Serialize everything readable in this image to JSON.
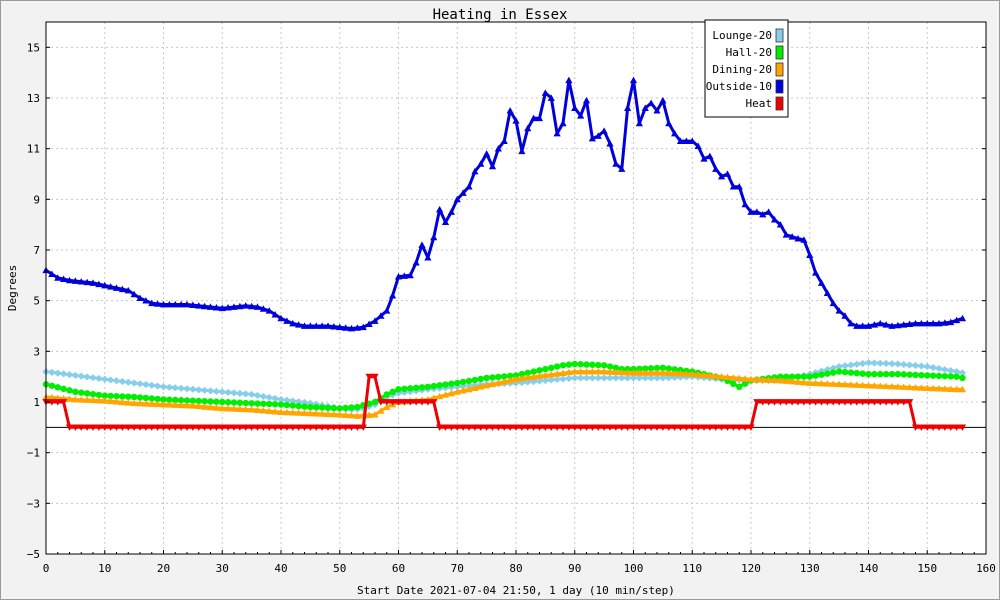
{
  "chart_data": {
    "type": "line",
    "title": "Heating in Essex",
    "xlabel": "Start Date 2021-07-04 21:50, 1 day (10 min/step)",
    "ylabel": "Degrees",
    "xlim": [
      0,
      160
    ],
    "ylim": [
      -5,
      16
    ],
    "x_ticks": [
      0,
      10,
      20,
      30,
      40,
      50,
      60,
      70,
      80,
      90,
      100,
      110,
      120,
      130,
      140,
      150,
      160
    ],
    "y_ticks": [
      -5,
      -3,
      -1,
      1,
      3,
      5,
      7,
      9,
      11,
      13,
      15
    ],
    "y_tick_labels": [
      "−5",
      "−3",
      "−1",
      "1",
      "3",
      "5",
      "7",
      "9",
      "11",
      "13",
      "15"
    ],
    "grid": true,
    "legend_position": "top-right",
    "series": [
      {
        "name": "Lounge-20",
        "color": "#87ceeb",
        "marker": "diamond",
        "points": [
          [
            0,
            2.2
          ],
          [
            5,
            2.05
          ],
          [
            10,
            1.9
          ],
          [
            15,
            1.75
          ],
          [
            20,
            1.6
          ],
          [
            25,
            1.5
          ],
          [
            30,
            1.4
          ],
          [
            35,
            1.3
          ],
          [
            40,
            1.1
          ],
          [
            45,
            0.95
          ],
          [
            50,
            0.75
          ],
          [
            52,
            0.7
          ],
          [
            54,
            0.75
          ],
          [
            56,
            0.9
          ],
          [
            58,
            1.2
          ],
          [
            60,
            1.35
          ],
          [
            65,
            1.5
          ],
          [
            70,
            1.6
          ],
          [
            75,
            1.7
          ],
          [
            80,
            1.75
          ],
          [
            85,
            1.85
          ],
          [
            90,
            1.95
          ],
          [
            95,
            1.95
          ],
          [
            100,
            1.95
          ],
          [
            105,
            1.95
          ],
          [
            110,
            2.0
          ],
          [
            115,
            1.9
          ],
          [
            120,
            1.85
          ],
          [
            125,
            1.85
          ],
          [
            130,
            2.1
          ],
          [
            135,
            2.4
          ],
          [
            140,
            2.55
          ],
          [
            145,
            2.5
          ],
          [
            150,
            2.4
          ],
          [
            155,
            2.2
          ],
          [
            156,
            2.15
          ]
        ]
      },
      {
        "name": "Hall-20",
        "color": "#00ee00",
        "marker": "circle",
        "points": [
          [
            0,
            1.7
          ],
          [
            5,
            1.4
          ],
          [
            10,
            1.25
          ],
          [
            15,
            1.2
          ],
          [
            20,
            1.1
          ],
          [
            25,
            1.05
          ],
          [
            30,
            1.0
          ],
          [
            35,
            0.95
          ],
          [
            40,
            0.9
          ],
          [
            45,
            0.8
          ],
          [
            50,
            0.75
          ],
          [
            53,
            0.8
          ],
          [
            56,
            1.0
          ],
          [
            58,
            1.3
          ],
          [
            60,
            1.5
          ],
          [
            65,
            1.6
          ],
          [
            70,
            1.75
          ],
          [
            75,
            1.95
          ],
          [
            80,
            2.05
          ],
          [
            85,
            2.3
          ],
          [
            88,
            2.45
          ],
          [
            90,
            2.5
          ],
          [
            95,
            2.45
          ],
          [
            98,
            2.3
          ],
          [
            100,
            2.3
          ],
          [
            105,
            2.35
          ],
          [
            110,
            2.2
          ],
          [
            115,
            1.95
          ],
          [
            118,
            1.6
          ],
          [
            120,
            1.85
          ],
          [
            125,
            2.0
          ],
          [
            130,
            2.0
          ],
          [
            135,
            2.2
          ],
          [
            140,
            2.1
          ],
          [
            145,
            2.1
          ],
          [
            150,
            2.05
          ],
          [
            155,
            2.0
          ],
          [
            156,
            1.95
          ]
        ]
      },
      {
        "name": "Dining-20",
        "color": "#ffa500",
        "marker": "triangle",
        "points": [
          [
            0,
            1.2
          ],
          [
            5,
            1.1
          ],
          [
            10,
            1.05
          ],
          [
            15,
            0.95
          ],
          [
            20,
            0.9
          ],
          [
            25,
            0.85
          ],
          [
            30,
            0.75
          ],
          [
            35,
            0.7
          ],
          [
            40,
            0.6
          ],
          [
            45,
            0.55
          ],
          [
            50,
            0.5
          ],
          [
            53,
            0.45
          ],
          [
            56,
            0.5
          ],
          [
            58,
            0.8
          ],
          [
            60,
            1.0
          ],
          [
            65,
            1.1
          ],
          [
            70,
            1.4
          ],
          [
            75,
            1.65
          ],
          [
            80,
            1.9
          ],
          [
            85,
            2.05
          ],
          [
            90,
            2.2
          ],
          [
            95,
            2.2
          ],
          [
            100,
            2.15
          ],
          [
            105,
            2.15
          ],
          [
            110,
            2.1
          ],
          [
            115,
            2.0
          ],
          [
            120,
            1.9
          ],
          [
            125,
            1.85
          ],
          [
            130,
            1.75
          ],
          [
            135,
            1.7
          ],
          [
            140,
            1.65
          ],
          [
            145,
            1.6
          ],
          [
            150,
            1.55
          ],
          [
            155,
            1.5
          ],
          [
            156,
            1.5
          ]
        ]
      },
      {
        "name": "Outside-10",
        "color": "#0000dd",
        "marker": "triangle",
        "points": [
          [
            0,
            6.2
          ],
          [
            2,
            5.9
          ],
          [
            4,
            5.8
          ],
          [
            6,
            5.75
          ],
          [
            8,
            5.7
          ],
          [
            10,
            5.6
          ],
          [
            12,
            5.5
          ],
          [
            14,
            5.4
          ],
          [
            16,
            5.1
          ],
          [
            18,
            4.9
          ],
          [
            20,
            4.85
          ],
          [
            24,
            4.85
          ],
          [
            26,
            4.8
          ],
          [
            28,
            4.75
          ],
          [
            30,
            4.7
          ],
          [
            32,
            4.75
          ],
          [
            34,
            4.8
          ],
          [
            36,
            4.75
          ],
          [
            38,
            4.6
          ],
          [
            40,
            4.3
          ],
          [
            42,
            4.1
          ],
          [
            44,
            4.0
          ],
          [
            48,
            4.0
          ],
          [
            50,
            3.95
          ],
          [
            52,
            3.9
          ],
          [
            54,
            3.95
          ],
          [
            56,
            4.2
          ],
          [
            58,
            4.6
          ],
          [
            59,
            5.2
          ],
          [
            60,
            5.95
          ],
          [
            62,
            6.0
          ],
          [
            63,
            6.5
          ],
          [
            64,
            7.2
          ],
          [
            65,
            6.7
          ],
          [
            66,
            7.5
          ],
          [
            67,
            8.6
          ],
          [
            68,
            8.1
          ],
          [
            69,
            8.5
          ],
          [
            70,
            9.0
          ],
          [
            72,
            9.5
          ],
          [
            73,
            10.1
          ],
          [
            74,
            10.4
          ],
          [
            75,
            10.8
          ],
          [
            76,
            10.3
          ],
          [
            77,
            11.0
          ],
          [
            78,
            11.3
          ],
          [
            79,
            12.5
          ],
          [
            80,
            12.1
          ],
          [
            81,
            10.9
          ],
          [
            82,
            11.8
          ],
          [
            83,
            12.2
          ],
          [
            84,
            12.2
          ],
          [
            85,
            13.2
          ],
          [
            86,
            13.0
          ],
          [
            87,
            11.6
          ],
          [
            88,
            12.0
          ],
          [
            89,
            13.7
          ],
          [
            90,
            12.6
          ],
          [
            91,
            12.3
          ],
          [
            92,
            12.9
          ],
          [
            93,
            11.4
          ],
          [
            94,
            11.5
          ],
          [
            95,
            11.7
          ],
          [
            96,
            11.2
          ],
          [
            97,
            10.4
          ],
          [
            98,
            10.2
          ],
          [
            99,
            12.6
          ],
          [
            100,
            13.7
          ],
          [
            101,
            12.0
          ],
          [
            102,
            12.6
          ],
          [
            103,
            12.8
          ],
          [
            104,
            12.5
          ],
          [
            105,
            12.9
          ],
          [
            106,
            12.0
          ],
          [
            107,
            11.6
          ],
          [
            108,
            11.3
          ],
          [
            110,
            11.3
          ],
          [
            111,
            11.1
          ],
          [
            112,
            10.6
          ],
          [
            113,
            10.7
          ],
          [
            114,
            10.2
          ],
          [
            115,
            9.9
          ],
          [
            116,
            10.0
          ],
          [
            117,
            9.5
          ],
          [
            118,
            9.5
          ],
          [
            119,
            8.8
          ],
          [
            120,
            8.5
          ],
          [
            121,
            8.5
          ],
          [
            122,
            8.4
          ],
          [
            123,
            8.5
          ],
          [
            124,
            8.2
          ],
          [
            125,
            8.0
          ],
          [
            126,
            7.6
          ],
          [
            128,
            7.45
          ],
          [
            129,
            7.4
          ],
          [
            130,
            6.8
          ],
          [
            131,
            6.1
          ],
          [
            132,
            5.7
          ],
          [
            133,
            5.3
          ],
          [
            134,
            4.9
          ],
          [
            135,
            4.6
          ],
          [
            136,
            4.4
          ],
          [
            137,
            4.1
          ],
          [
            138,
            4.0
          ],
          [
            140,
            4.0
          ],
          [
            142,
            4.1
          ],
          [
            144,
            4.0
          ],
          [
            146,
            4.05
          ],
          [
            148,
            4.1
          ],
          [
            152,
            4.1
          ],
          [
            154,
            4.15
          ],
          [
            156,
            4.3
          ]
        ]
      },
      {
        "name": "Heat",
        "color": "#ee0000",
        "marker": "triangle-down",
        "points": [
          [
            0,
            1
          ],
          [
            3,
            1
          ],
          [
            4,
            0
          ],
          [
            54,
            0
          ],
          [
            55,
            2
          ],
          [
            56,
            2
          ],
          [
            57,
            1
          ],
          [
            66,
            1
          ],
          [
            67,
            0
          ],
          [
            120,
            0
          ],
          [
            121,
            1
          ],
          [
            147,
            1
          ],
          [
            148,
            0
          ],
          [
            156,
            0
          ]
        ]
      }
    ]
  }
}
